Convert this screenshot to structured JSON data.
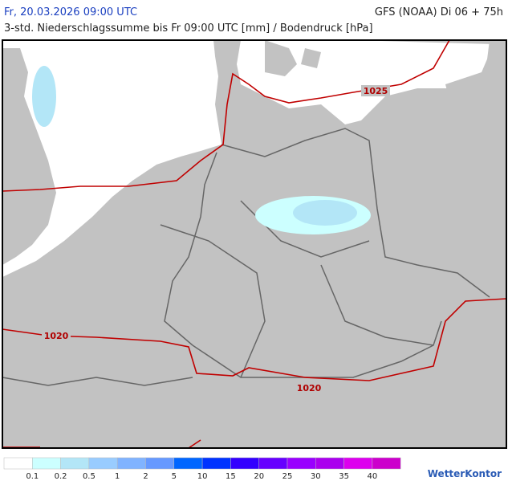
{
  "header": {
    "left": "Fr, 20.03.2026 09:00 UTC",
    "right": "GFS (NOAA) Di 06 + 75h",
    "subtitle": "3-std. Niederschlagssumme bis Fr 09:00 UTC [mm] / Bodendruck [hPa]"
  },
  "isobars": {
    "labels": [
      "1025",
      "1020",
      "1020"
    ]
  },
  "legend": {
    "colors": [
      "#ffffff",
      "#ccffff",
      "#b3e6f7",
      "#99ccff",
      "#80b3ff",
      "#6699ff",
      "#0066ff",
      "#0033ff",
      "#3300ff",
      "#6600ff",
      "#9900ff",
      "#aa00ee",
      "#dd00ee",
      "#cc00cc"
    ],
    "labels": [
      0.1,
      0.2,
      0.5,
      1,
      2,
      5,
      10,
      15,
      20,
      25,
      30,
      35,
      40
    ]
  },
  "brand": "WetterKontor"
}
